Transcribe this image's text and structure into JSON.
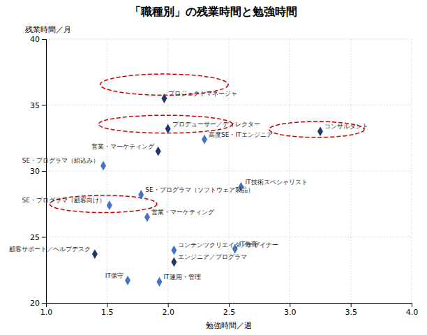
{
  "chart_data": {
    "type": "scatter",
    "title": "「職種別」の残業時間と勉強時間",
    "xlabel": "勉強時間／週",
    "ylabel": "残業時間／月",
    "xlim": [
      1.0,
      4.0
    ],
    "ylim": [
      20,
      40
    ],
    "xticks": [
      {
        "value": 1.0,
        "label": "1.0"
      },
      1.5,
      {
        "value": 2.0,
        "label": "2.0"
      },
      2.5,
      {
        "value": 3.0,
        "label": "3.0"
      },
      3.5,
      {
        "value": 4.0,
        "label": "4.0"
      }
    ],
    "yticks": [
      20,
      25,
      30,
      35,
      40
    ],
    "grid": true,
    "marker": "diamond",
    "x": [
      1.97,
      2.0,
      3.25,
      1.92,
      2.3,
      1.47,
      1.78,
      2.6,
      1.52,
      1.83,
      2.05,
      2.55,
      1.4,
      2.05,
      1.67,
      1.93
    ],
    "values": [
      35.5,
      33.2,
      33.0,
      31.5,
      32.4,
      30.4,
      28.2,
      28.8,
      27.4,
      26.5,
      24.0,
      24.1,
      23.7,
      23.1,
      21.7,
      21.6
    ],
    "labels": [
      "プロジェクトマネージャ",
      "プロデューサー／ディレクター",
      "コンサルタント",
      "営業・マーケティング",
      "高度SE・ITエンジニア",
      "SE・プログラマ（組込み）",
      "SE・プログラマ（ソフトウェア製品）",
      "IT技術スペシャリスト",
      "SE・プログラマ（顧客向け）",
      "営業・マーケティング",
      "コンテンツクリエイタ／デザイナー",
      "IT教育",
      "顧客サポート／ヘルプデスク",
      "エンジニア／プログラマ",
      "IT保守",
      "IT運用・管理"
    ],
    "colors": [
      "#1F3869",
      "#1F3869",
      "#1F3869",
      "#1F3869",
      "#4472C4",
      "#4472C4",
      "#4472C4",
      "#4472C4",
      "#4472C4",
      "#4472C4",
      "#4472C4",
      "#4472C4",
      "#1F3869",
      "#1F3869",
      "#4472C4",
      "#4472C4"
    ],
    "ellipses": [
      {
        "cx": 1.97,
        "cy": 36.55,
        "width": 1.05,
        "height": 1.6,
        "color": "#CC0000",
        "line_style": "dashed"
      },
      {
        "cx": 1.98,
        "cy": 33.55,
        "width": 1.1,
        "height": 1.35,
        "color": "#CC0000",
        "line_style": "dashed"
      },
      {
        "cx": 3.22,
        "cy": 33.15,
        "width": 0.78,
        "height": 1.2,
        "color": "#CC0000",
        "line_style": "dashed"
      },
      {
        "cx": 1.47,
        "cy": 27.5,
        "width": 0.88,
        "height": 1.3,
        "color": "#CC0000",
        "line_style": "dashed"
      }
    ]
  }
}
